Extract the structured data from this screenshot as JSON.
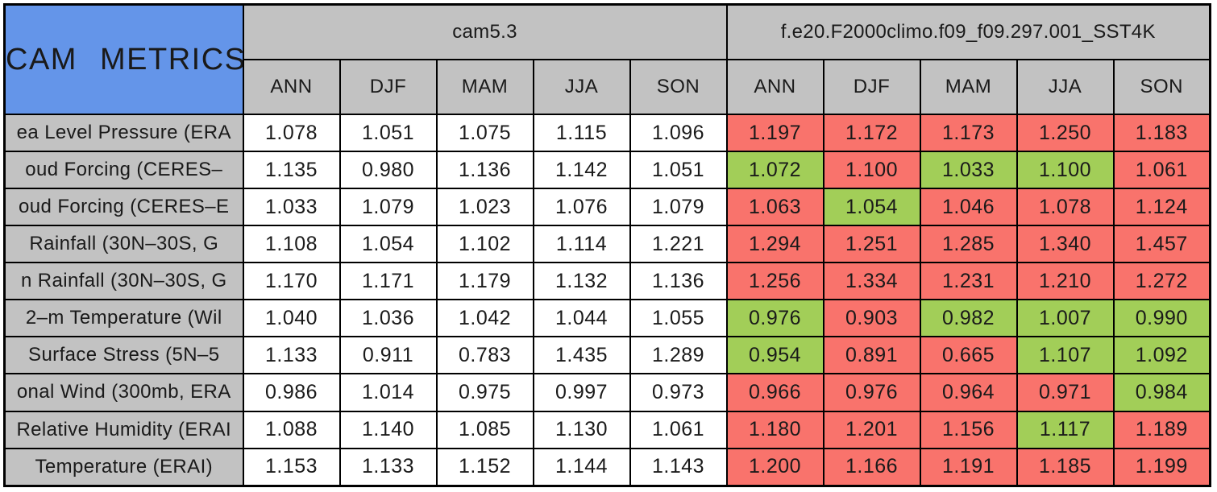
{
  "page": {
    "background": "#FFFFFF"
  },
  "title": "CAM METRICS",
  "colors": {
    "title_bg": "#6495E9",
    "header_bg": "#C2C2C2",
    "label_bg": "#C2C2C2",
    "value_default_bg": "#FFFFFF",
    "better_bg": "#A2CE58",
    "worse_bg": "#F9736C",
    "border": "#000000",
    "text": "#1A1A1A"
  },
  "chart_data": {
    "type": "table",
    "title": "CAM METRICS",
    "column_groups": [
      {
        "label": "cam5.3",
        "columns": [
          "ANN",
          "DJF",
          "MAM",
          "JJA",
          "SON"
        ]
      },
      {
        "label": "f.e20.F2000climo.f09_f09.297.001_SST4K",
        "columns": [
          "ANN",
          "DJF",
          "MAM",
          "JJA",
          "SON"
        ]
      }
    ],
    "rows": [
      {
        "label": "ea Level Pressure (ERA",
        "cam5_3": [
          "1.078",
          "1.051",
          "1.075",
          "1.115",
          "1.096"
        ],
        "sst4k": [
          "1.197",
          "1.172",
          "1.173",
          "1.250",
          "1.183"
        ],
        "sst4k_flags": [
          "worse",
          "worse",
          "worse",
          "worse",
          "worse"
        ]
      },
      {
        "label": "oud Forcing (CERES–",
        "cam5_3": [
          "1.135",
          "0.980",
          "1.136",
          "1.142",
          "1.051"
        ],
        "sst4k": [
          "1.072",
          "1.100",
          "1.033",
          "1.100",
          "1.061"
        ],
        "sst4k_flags": [
          "better",
          "worse",
          "better",
          "better",
          "worse"
        ]
      },
      {
        "label": "oud Forcing (CERES–E",
        "cam5_3": [
          "1.033",
          "1.079",
          "1.023",
          "1.076",
          "1.079"
        ],
        "sst4k": [
          "1.063",
          "1.054",
          "1.046",
          "1.078",
          "1.124"
        ],
        "sst4k_flags": [
          "worse",
          "better",
          "worse",
          "worse",
          "worse"
        ]
      },
      {
        "label": "Rainfall (30N–30S, G",
        "cam5_3": [
          "1.108",
          "1.054",
          "1.102",
          "1.114",
          "1.221"
        ],
        "sst4k": [
          "1.294",
          "1.251",
          "1.285",
          "1.340",
          "1.457"
        ],
        "sst4k_flags": [
          "worse",
          "worse",
          "worse",
          "worse",
          "worse"
        ]
      },
      {
        "label": "n Rainfall (30N–30S, G",
        "cam5_3": [
          "1.170",
          "1.171",
          "1.179",
          "1.132",
          "1.136"
        ],
        "sst4k": [
          "1.256",
          "1.334",
          "1.231",
          "1.210",
          "1.272"
        ],
        "sst4k_flags": [
          "worse",
          "worse",
          "worse",
          "worse",
          "worse"
        ]
      },
      {
        "label": "2–m Temperature (Wil",
        "cam5_3": [
          "1.040",
          "1.036",
          "1.042",
          "1.044",
          "1.055"
        ],
        "sst4k": [
          "0.976",
          "0.903",
          "0.982",
          "1.007",
          "0.990"
        ],
        "sst4k_flags": [
          "better",
          "worse",
          "better",
          "better",
          "better"
        ]
      },
      {
        "label": "Surface Stress (5N–5",
        "cam5_3": [
          "1.133",
          "0.911",
          "0.783",
          "1.435",
          "1.289"
        ],
        "sst4k": [
          "0.954",
          "0.891",
          "0.665",
          "1.107",
          "1.092"
        ],
        "sst4k_flags": [
          "better",
          "worse",
          "worse",
          "better",
          "better"
        ]
      },
      {
        "label": "onal Wind (300mb, ERA",
        "cam5_3": [
          "0.986",
          "1.014",
          "0.975",
          "0.997",
          "0.973"
        ],
        "sst4k": [
          "0.966",
          "0.976",
          "0.964",
          "0.971",
          "0.984"
        ],
        "sst4k_flags": [
          "worse",
          "worse",
          "worse",
          "worse",
          "better"
        ]
      },
      {
        "label": "Relative Humidity (ERAI",
        "cam5_3": [
          "1.088",
          "1.140",
          "1.085",
          "1.130",
          "1.061"
        ],
        "sst4k": [
          "1.180",
          "1.201",
          "1.156",
          "1.117",
          "1.189"
        ],
        "sst4k_flags": [
          "worse",
          "worse",
          "worse",
          "better",
          "worse"
        ]
      },
      {
        "label": "Temperature (ERAI)",
        "cam5_3": [
          "1.153",
          "1.133",
          "1.152",
          "1.144",
          "1.143"
        ],
        "sst4k": [
          "1.200",
          "1.166",
          "1.191",
          "1.185",
          "1.199"
        ],
        "sst4k_flags": [
          "worse",
          "worse",
          "worse",
          "worse",
          "worse"
        ]
      }
    ]
  }
}
